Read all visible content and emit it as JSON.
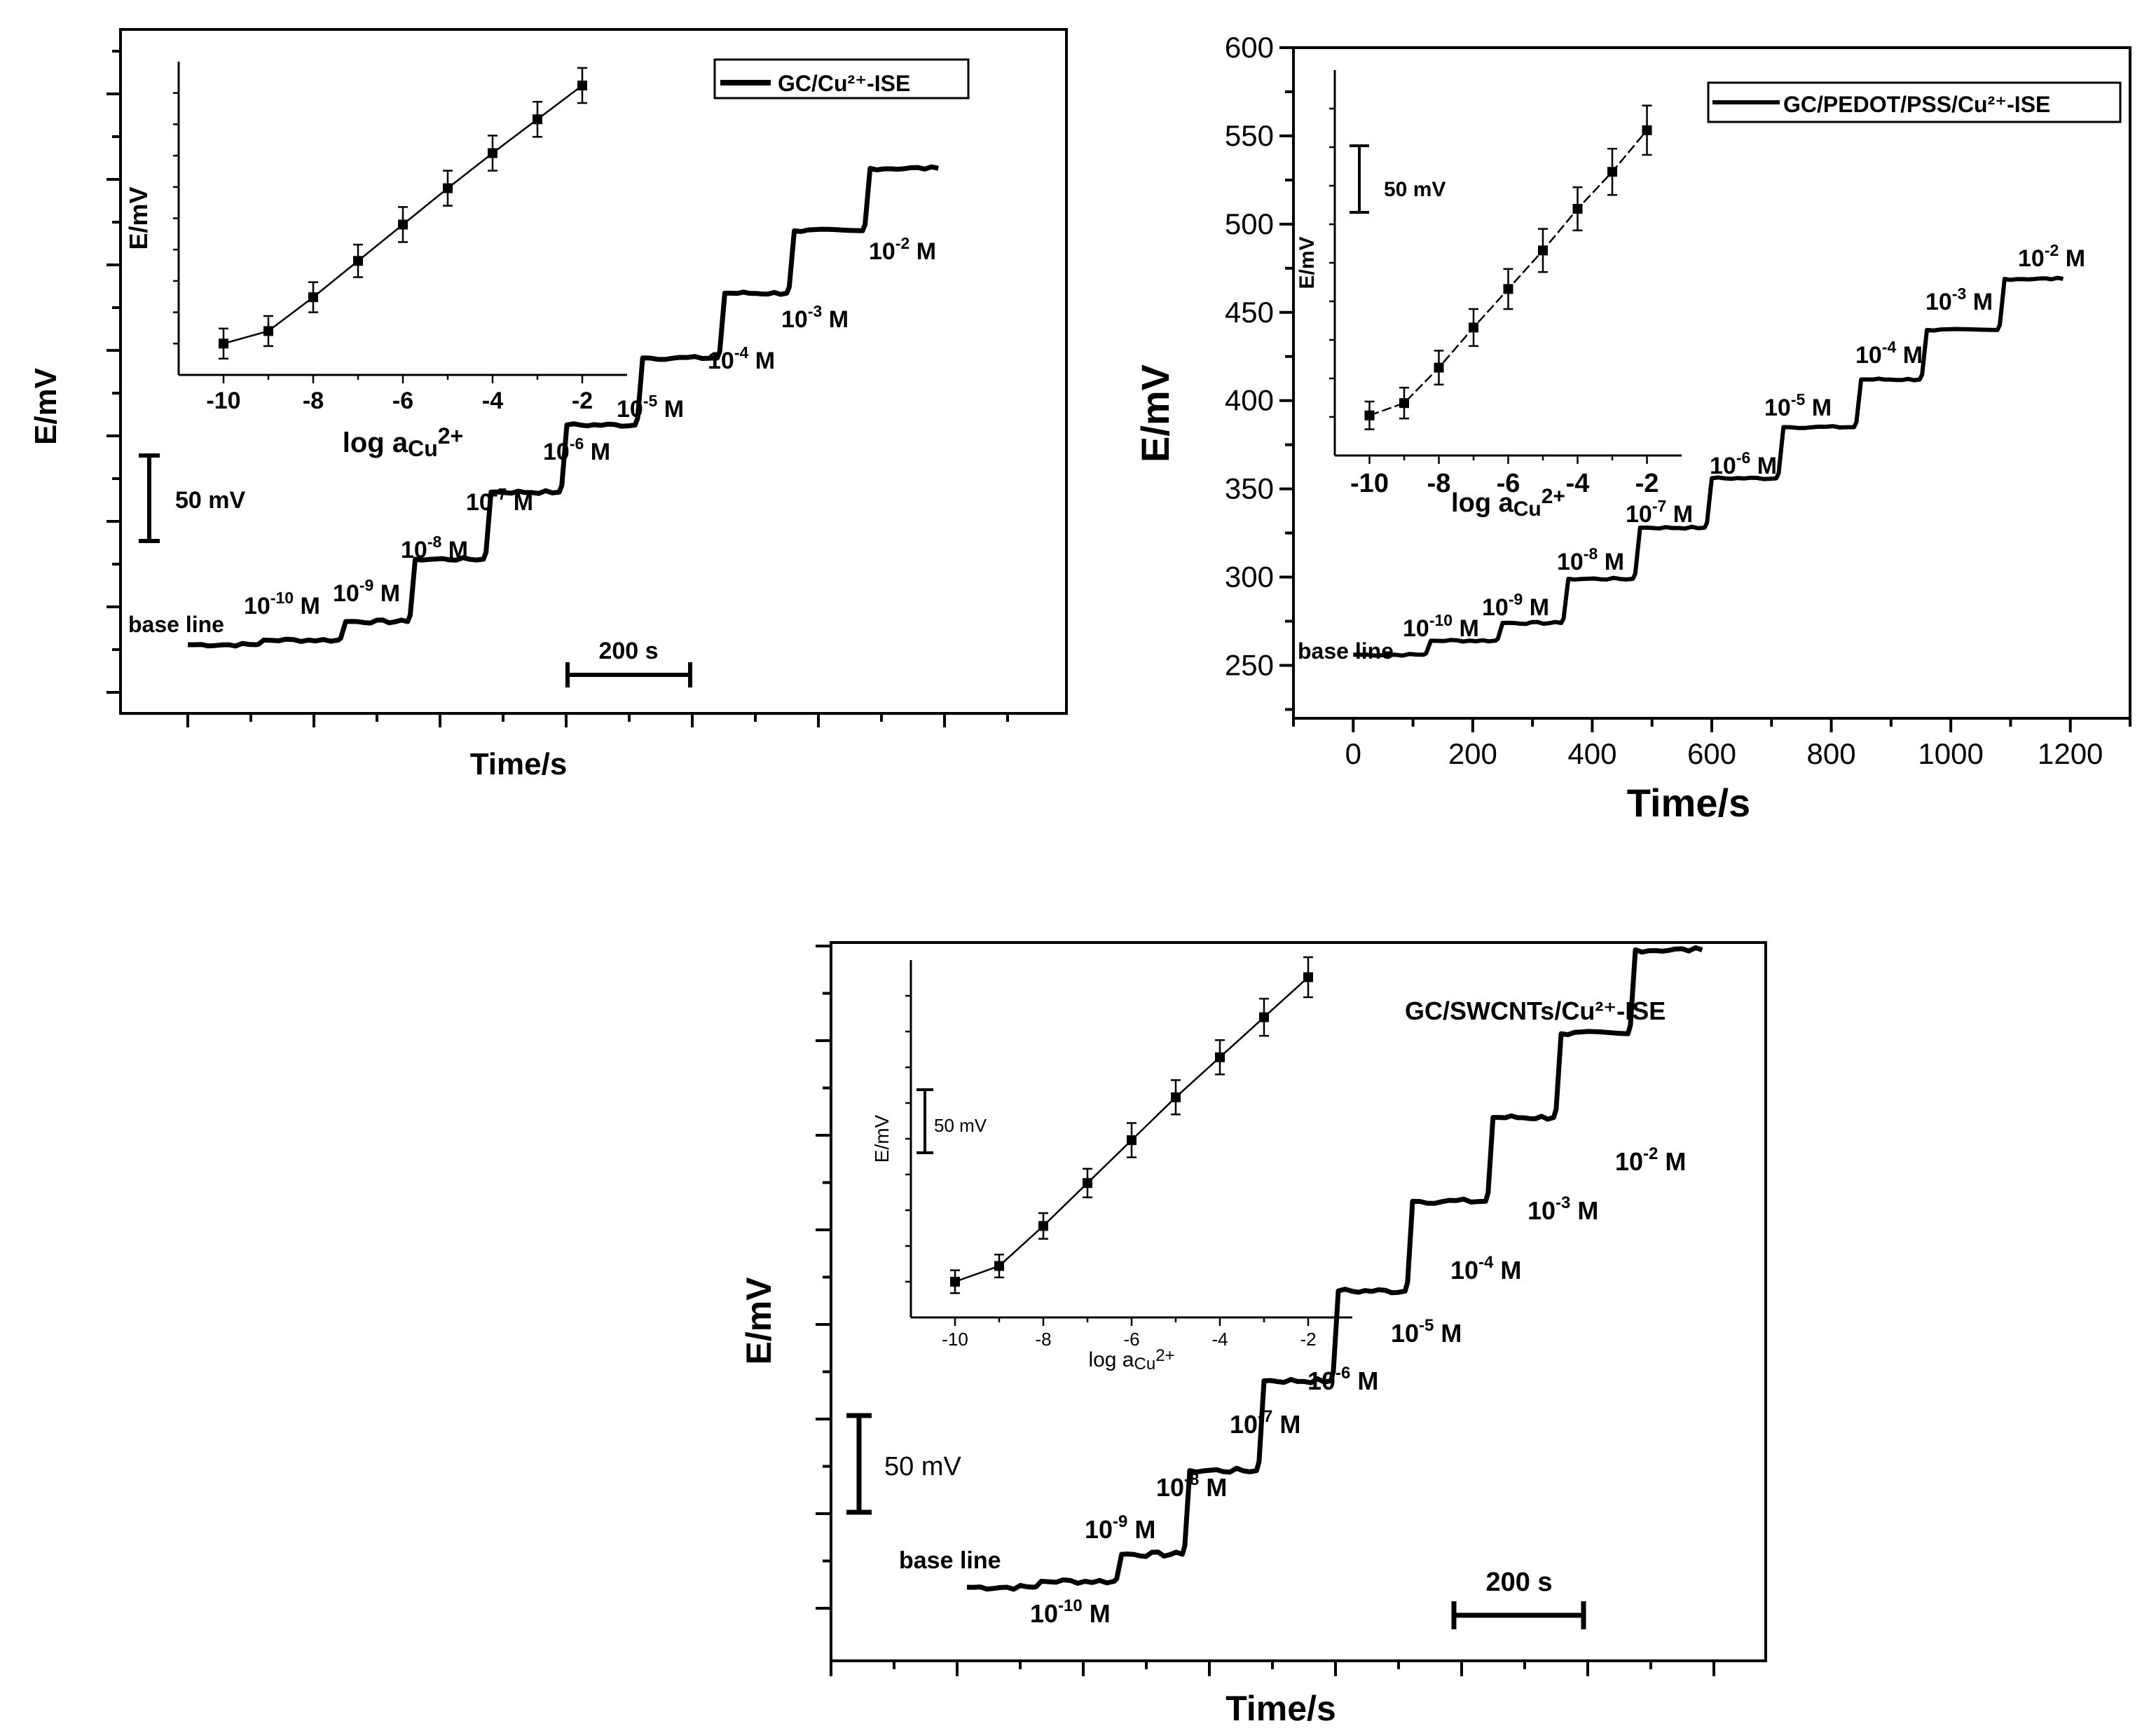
{
  "chart_data": [
    {
      "id": "A",
      "type": "line",
      "xlabel": "Time/s",
      "ylabel": "E/mV",
      "legend": "GC/Cu²⁺-ISE",
      "xticks_labeled": false,
      "yticks_labeled": false,
      "scale_bar_time": "200 s",
      "scale_bar_potential": "50 mV",
      "ylim": [
        215,
        600
      ],
      "baseline_label": "base line",
      "steps": [
        {
          "time": 0,
          "value": 255,
          "exp": "",
          "label": ""
        },
        {
          "time": 120,
          "value": 257,
          "exp": "-10",
          "label": " M"
        },
        {
          "time": 250,
          "value": 265,
          "exp": "-9",
          "label": " M"
        },
        {
          "time": 360,
          "value": 292,
          "exp": "-8",
          "label": " M"
        },
        {
          "time": 480,
          "value": 321,
          "exp": "-7",
          "label": " M"
        },
        {
          "time": 600,
          "value": 350,
          "exp": "-6",
          "label": " M"
        },
        {
          "time": 720,
          "value": 379,
          "exp": "-5",
          "label": " M"
        },
        {
          "time": 850,
          "value": 407,
          "exp": "-4",
          "label": " M"
        },
        {
          "time": 960,
          "value": 434,
          "exp": "-3",
          "label": " M"
        },
        {
          "time": 1080,
          "value": 461,
          "exp": "-2",
          "label": " M"
        }
      ],
      "step_end_time": 1200,
      "inset": {
        "xlabel": "log a",
        "xlabel_sub": "Cu",
        "xlabel_sup": "2+",
        "ylabel": "E/mV",
        "x": [
          -10,
          -9,
          -8,
          -7,
          -6,
          -5,
          -4,
          -3,
          -2
        ],
        "y": [
          255,
          265,
          292,
          321,
          350,
          379,
          407,
          434,
          461
        ],
        "err": [
          12,
          12,
          12,
          13,
          14,
          14,
          14,
          14,
          14
        ],
        "xticks": [
          "-10",
          "-8",
          "-6",
          "-4",
          "-2"
        ],
        "xlim": [
          -11,
          -1
        ],
        "ylim": [
          230,
          480
        ]
      }
    },
    {
      "id": "B",
      "type": "line",
      "xlabel": "Time/s",
      "ylabel": "E/mV",
      "legend": "GC/PEDOT/PSS/Cu²⁺-ISE",
      "xticks_labeled": true,
      "yticks_labeled": true,
      "xticks": [
        "0",
        "200",
        "400",
        "600",
        "800",
        "1000",
        "1200"
      ],
      "yticks": [
        "250",
        "300",
        "350",
        "400",
        "450",
        "500",
        "550",
        "600"
      ],
      "xlim": [
        -100,
        1300
      ],
      "ylim": [
        220,
        600
      ],
      "baseline_label": "base line",
      "scale_bar_potential": "50 mV",
      "steps": [
        {
          "time": 0,
          "value": 256,
          "exp": "",
          "label": ""
        },
        {
          "time": 130,
          "value": 264,
          "exp": "-10",
          "label": " M"
        },
        {
          "time": 250,
          "value": 274,
          "exp": "-9",
          "label": " M"
        },
        {
          "time": 360,
          "value": 299,
          "exp": "-8",
          "label": " M"
        },
        {
          "time": 480,
          "value": 328,
          "exp": "-7",
          "label": " M"
        },
        {
          "time": 600,
          "value": 356,
          "exp": "-6",
          "label": " M"
        },
        {
          "time": 720,
          "value": 385,
          "exp": "-5",
          "label": " M"
        },
        {
          "time": 850,
          "value": 412,
          "exp": "-4",
          "label": " M"
        },
        {
          "time": 960,
          "value": 440,
          "exp": "-3",
          "label": " M"
        },
        {
          "time": 1090,
          "value": 469,
          "exp": "-2",
          "label": " M"
        }
      ],
      "step_end_time": 1200,
      "inset": {
        "xlabel": "log a",
        "xlabel_sub": "Cu",
        "xlabel_sup": "2+",
        "ylabel": "E/mV",
        "x": [
          -10,
          -9,
          -8,
          -7,
          -6,
          -5,
          -4,
          -3,
          -2
        ],
        "y": [
          256,
          264,
          287,
          313,
          338,
          363,
          390,
          414,
          441
        ],
        "err": [
          9,
          10,
          11,
          12,
          13,
          14,
          14,
          15,
          16
        ],
        "xticks": [
          "-10",
          "-8",
          "-6",
          "-4",
          "-2"
        ],
        "xlim": [
          -11,
          -1
        ],
        "ylim": [
          230,
          480
        ]
      }
    },
    {
      "id": "C",
      "type": "line",
      "xlabel": "Time/s",
      "ylabel": "E/mV",
      "legend": "GC/SWCNTs/Cu²⁺-ISE",
      "xticks_labeled": false,
      "yticks_labeled": false,
      "scale_bar_time": "200 s",
      "scale_bar_potential": "50 mV",
      "ylim": [
        220,
        600
      ],
      "baseline_label": "base line",
      "steps": [
        {
          "time": 0,
          "value": 255,
          "exp": "",
          "label": ""
        },
        {
          "time": 120,
          "value": 257,
          "exp": "-10",
          "label": " M"
        },
        {
          "time": 250,
          "value": 266,
          "exp": "-9",
          "label": " M"
        },
        {
          "time": 360,
          "value": 294,
          "exp": "-8",
          "label": " M"
        },
        {
          "time": 480,
          "value": 324,
          "exp": "-7",
          "label": " M"
        },
        {
          "time": 600,
          "value": 354,
          "exp": "-6",
          "label": " M"
        },
        {
          "time": 720,
          "value": 384,
          "exp": "-5",
          "label": " M"
        },
        {
          "time": 850,
          "value": 412,
          "exp": "-4",
          "label": " M"
        },
        {
          "time": 960,
          "value": 440,
          "exp": "-3",
          "label": " M"
        },
        {
          "time": 1080,
          "value": 468,
          "exp": "-2",
          "label": " M"
        }
      ],
      "step_end_time": 1200,
      "inset": {
        "xlabel": "log a",
        "xlabel_sub": "Cu",
        "xlabel_sup": "2+",
        "ylabel": "E/mV",
        "scale_bar_potential": "50 mV",
        "x": [
          -10,
          -9,
          -8,
          -7,
          -6,
          -5,
          -4,
          -3,
          -2
        ],
        "y": [
          255,
          266,
          294,
          324,
          354,
          384,
          412,
          440,
          468
        ],
        "err": [
          8,
          8,
          9,
          10,
          12,
          12,
          12,
          13,
          14
        ],
        "xticks": [
          "-10",
          "-9",
          "-8",
          "-7",
          "-6",
          "-5",
          "-4",
          "-3",
          "-2"
        ],
        "xticks_labeled": [
          "-10",
          "-8",
          "-6",
          "-4",
          "-2"
        ],
        "xlim": [
          -11,
          -1
        ],
        "ylim": [
          230,
          480
        ]
      }
    }
  ]
}
